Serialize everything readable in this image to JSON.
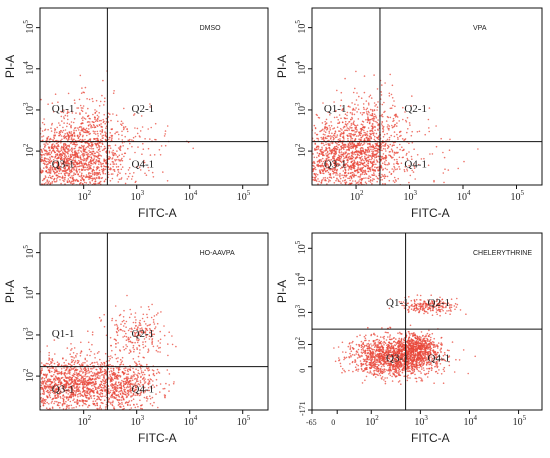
{
  "chart_data": [
    {
      "type": "scatter",
      "title": "DMSO",
      "xlabel": "FITC-A",
      "ylabel": "PI-A",
      "scale": "log",
      "xlim": [
        15,
        300000
      ],
      "ylim": [
        15,
        300000
      ],
      "x_ticks": [
        {
          "label": "10",
          "sup": "2",
          "value": 100
        },
        {
          "label": "10",
          "sup": "3",
          "value": 1000
        },
        {
          "label": "10",
          "sup": "4",
          "value": 10000
        },
        {
          "label": "10",
          "sup": "5",
          "value": 100000
        }
      ],
      "y_ticks": [
        {
          "label": "10",
          "sup": "2",
          "value": 100
        },
        {
          "label": "10",
          "sup": "3",
          "value": 1000
        },
        {
          "label": "10",
          "sup": "4",
          "value": 10000
        },
        {
          "label": "10",
          "sup": "5",
          "value": 100000
        }
      ],
      "gate": {
        "x": 280,
        "y": 170
      },
      "quadrants": [
        {
          "label": "Q1-1",
          "x": 25,
          "y": 900
        },
        {
          "label": "Q2-1",
          "x": 800,
          "y": 900
        },
        {
          "label": "Q3-1",
          "x": 25,
          "y": 40
        },
        {
          "label": "Q4-1",
          "x": 800,
          "y": 40
        }
      ],
      "clusters": [
        {
          "cx": 50,
          "cy": 60,
          "sx": 0.55,
          "sy": 0.45,
          "n": 1500
        },
        {
          "cx": 140,
          "cy": 200,
          "sx": 0.35,
          "sy": 0.6,
          "n": 350
        },
        {
          "cx": 1000,
          "cy": 100,
          "sx": 0.6,
          "sy": 0.5,
          "n": 60
        }
      ],
      "point_color": "#e8473a"
    },
    {
      "type": "scatter",
      "title": "VPA",
      "xlabel": "FITC-A",
      "ylabel": "PI-A",
      "scale": "log",
      "xlim": [
        15,
        300000
      ],
      "ylim": [
        15,
        300000
      ],
      "x_ticks": [
        {
          "label": "10",
          "sup": "2",
          "value": 100
        },
        {
          "label": "10",
          "sup": "3",
          "value": 1000
        },
        {
          "label": "10",
          "sup": "4",
          "value": 10000
        },
        {
          "label": "10",
          "sup": "5",
          "value": 100000
        }
      ],
      "y_ticks": [
        {
          "label": "10",
          "sup": "2",
          "value": 100
        },
        {
          "label": "10",
          "sup": "3",
          "value": 1000
        },
        {
          "label": "10",
          "sup": "4",
          "value": 10000
        },
        {
          "label": "10",
          "sup": "5",
          "value": 100000
        }
      ],
      "gate": {
        "x": 280,
        "y": 170
      },
      "quadrants": [
        {
          "label": "Q1-1",
          "x": 25,
          "y": 900
        },
        {
          "label": "Q2-1",
          "x": 800,
          "y": 900
        },
        {
          "label": "Q3-1",
          "x": 25,
          "y": 40
        },
        {
          "label": "Q4-1",
          "x": 800,
          "y": 40
        }
      ],
      "clusters": [
        {
          "cx": 60,
          "cy": 70,
          "sx": 0.5,
          "sy": 0.45,
          "n": 1400
        },
        {
          "cx": 180,
          "cy": 260,
          "sx": 0.35,
          "sy": 0.55,
          "n": 450
        },
        {
          "cx": 900,
          "cy": 120,
          "sx": 0.6,
          "sy": 0.5,
          "n": 80
        }
      ],
      "point_color": "#e8473a"
    },
    {
      "type": "scatter",
      "title": "HO-AAVPA",
      "xlabel": "FITC-A",
      "ylabel": "PI-A",
      "scale": "log",
      "xlim": [
        15,
        300000
      ],
      "ylim": [
        15,
        300000
      ],
      "x_ticks": [
        {
          "label": "10",
          "sup": "2",
          "value": 100
        },
        {
          "label": "10",
          "sup": "3",
          "value": 1000
        },
        {
          "label": "10",
          "sup": "4",
          "value": 10000
        },
        {
          "label": "10",
          "sup": "5",
          "value": 100000
        }
      ],
      "y_ticks": [
        {
          "label": "10",
          "sup": "2",
          "value": 100
        },
        {
          "label": "10",
          "sup": "3",
          "value": 1000
        },
        {
          "label": "10",
          "sup": "4",
          "value": 10000
        },
        {
          "label": "10",
          "sup": "5",
          "value": 100000
        }
      ],
      "gate": {
        "x": 280,
        "y": 170
      },
      "quadrants": [
        {
          "label": "Q1-1",
          "x": 25,
          "y": 900
        },
        {
          "label": "Q2-1",
          "x": 800,
          "y": 900
        },
        {
          "label": "Q3-1",
          "x": 25,
          "y": 40
        },
        {
          "label": "Q4-1",
          "x": 800,
          "y": 40
        }
      ],
      "clusters": [
        {
          "cx": 70,
          "cy": 60,
          "sx": 0.6,
          "sy": 0.35,
          "n": 1600
        },
        {
          "cx": 700,
          "cy": 60,
          "sx": 0.3,
          "sy": 0.3,
          "n": 300
        },
        {
          "cx": 900,
          "cy": 1000,
          "sx": 0.3,
          "sy": 0.3,
          "n": 220
        }
      ],
      "point_color": "#e8473a"
    },
    {
      "type": "scatter",
      "title": "CHELERYTHRINE",
      "xlabel": "FITC-A",
      "ylabel": "PI-A",
      "scale": "biexponential",
      "xlim": [
        -65,
        300000
      ],
      "ylim": [
        -171,
        300000
      ],
      "x_ticks": [
        {
          "label": "-65",
          "sup": "",
          "value": -65
        },
        {
          "label": "0",
          "sup": "",
          "value": 0
        },
        {
          "label": "10",
          "sup": "2",
          "value": 100
        },
        {
          "label": "10",
          "sup": "3",
          "value": 1000
        },
        {
          "label": "10",
          "sup": "4",
          "value": 10000
        },
        {
          "label": "10",
          "sup": "5",
          "value": 100000
        }
      ],
      "y_ticks": [
        {
          "label": "-171",
          "sup": "",
          "value": -171
        },
        {
          "label": "0",
          "sup": "",
          "value": 0
        },
        {
          "label": "10",
          "sup": "2",
          "value": 100
        },
        {
          "label": "10",
          "sup": "3",
          "value": 1000
        },
        {
          "label": "10",
          "sup": "4",
          "value": 10000
        },
        {
          "label": "10",
          "sup": "5",
          "value": 100000
        }
      ],
      "gate": {
        "x": 500,
        "y": 300
      },
      "quadrants": [
        {
          "label": "Q1-1",
          "x": 200,
          "y": 1600
        },
        {
          "label": "Q2-1",
          "x": 1400,
          "y": 1600
        },
        {
          "label": "Q3-1",
          "x": 200,
          "y": 20
        },
        {
          "label": "Q4-1",
          "x": 1400,
          "y": 20
        }
      ],
      "clusters": [
        {
          "cx": 300,
          "cy": 40,
          "sx": 0.45,
          "sy": 0.3,
          "n": 1500
        },
        {
          "cx": 900,
          "cy": 70,
          "sx": 0.2,
          "sy": 0.25,
          "n": 450
        },
        {
          "cx": 1300,
          "cy": 1600,
          "sx": 0.28,
          "sy": 0.12,
          "n": 220
        }
      ],
      "point_color": "#e8473a"
    }
  ]
}
